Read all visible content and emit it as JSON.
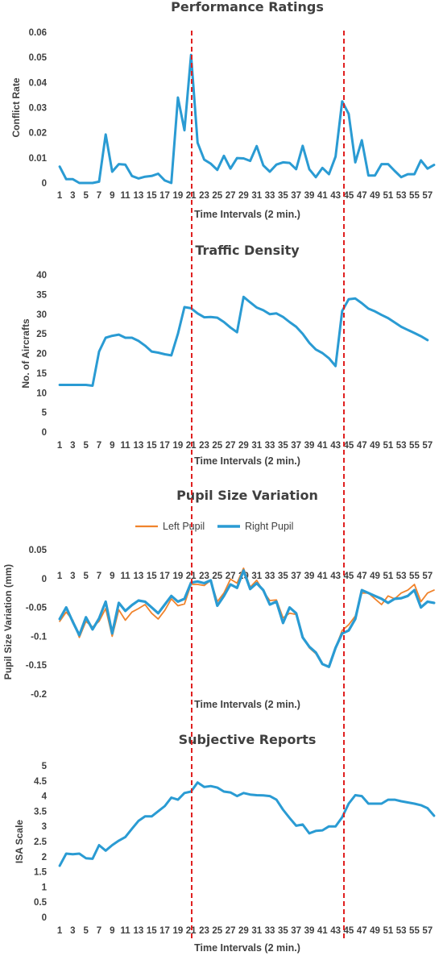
{
  "colors": {
    "series_primary": "#2a9bd3",
    "series_left": "#f0832c",
    "marker_line": "#e02020",
    "text": "#404040"
  },
  "chart_data": [
    {
      "type": "line",
      "title": "Performance Ratings",
      "xlabel": "Time Intervals (2 min.)",
      "ylabel": "Conflict Rate",
      "ylim": [
        0,
        0.06
      ],
      "yticks": [
        "0",
        "0.01",
        "0.02",
        "0.03",
        "0.04",
        "0.05",
        "0.06"
      ],
      "xticks": [
        "1",
        "3",
        "5",
        "7",
        "9",
        "11",
        "13",
        "15",
        "17",
        "19",
        "21",
        "23",
        "25",
        "27",
        "29",
        "31",
        "33",
        "35",
        "37",
        "39",
        "41",
        "43",
        "45",
        "47",
        "49",
        "51",
        "53",
        "55",
        "57"
      ],
      "x": [
        1,
        2,
        3,
        4,
        5,
        6,
        7,
        8,
        9,
        10,
        11,
        12,
        13,
        14,
        15,
        16,
        17,
        18,
        19,
        20,
        21,
        22,
        23,
        24,
        25,
        26,
        27,
        28,
        29,
        30,
        31,
        32,
        33,
        34,
        35,
        36,
        37,
        38,
        39,
        40,
        41,
        42,
        43,
        44,
        45,
        46,
        47,
        48,
        49,
        50,
        51,
        52,
        53,
        54,
        55,
        56,
        57,
        58
      ],
      "series": [
        {
          "values": [
            0.0065,
            0.0015,
            0.0015,
            0,
            0,
            0,
            0.0005,
            0.0193,
            0.0045,
            0.0075,
            0.0073,
            0.0028,
            0.0018,
            0.0025,
            0.0028,
            0.0037,
            0.001,
            0,
            0.034,
            0.021,
            0.051,
            0.016,
            0.0093,
            0.0077,
            0.0052,
            0.0108,
            0.0057,
            0.0099,
            0.0098,
            0.0088,
            0.0147,
            0.007,
            0.0045,
            0.0073,
            0.0082,
            0.008,
            0.0055,
            0.0148,
            0.0055,
            0.0023,
            0.006,
            0.0035,
            0.0105,
            0.0325,
            0.0275,
            0.0082,
            0.017,
            0.003,
            0.003,
            0.0075,
            0.0075,
            0.0048,
            0.0023,
            0.0035,
            0.0035,
            0.009,
            0.0057,
            0.0072
          ]
        }
      ]
    },
    {
      "type": "line",
      "title": "Traffic Density",
      "xlabel": "Time Intervals (2 min.)",
      "ylabel": "No. of Aircrafts",
      "ylim": [
        0,
        40
      ],
      "yticks": [
        "0",
        "5",
        "10",
        "15",
        "20",
        "25",
        "30",
        "35",
        "40"
      ],
      "xticks": [
        "1",
        "3",
        "5",
        "7",
        "9",
        "11",
        "13",
        "15",
        "17",
        "19",
        "21",
        "23",
        "25",
        "27",
        "29",
        "31",
        "33",
        "35",
        "37",
        "39",
        "41",
        "43",
        "45",
        "47",
        "49",
        "51",
        "53",
        "55",
        "57"
      ],
      "x": [
        1,
        2,
        3,
        4,
        5,
        6,
        7,
        8,
        9,
        10,
        11,
        12,
        13,
        14,
        15,
        16,
        17,
        18,
        19,
        20,
        21,
        22,
        23,
        24,
        25,
        26,
        27,
        28,
        29,
        30,
        31,
        32,
        33,
        34,
        35,
        36,
        37,
        38,
        39,
        40,
        41,
        42,
        43,
        44,
        45,
        46,
        47,
        48,
        49,
        50,
        51,
        52,
        53,
        54,
        55,
        56,
        57
      ],
      "series": [
        {
          "values": [
            12,
            12,
            12,
            12,
            12,
            11.8,
            20.5,
            24,
            24.5,
            24.8,
            24,
            24,
            23.2,
            22,
            20.5,
            20.2,
            19.8,
            19.5,
            25,
            31.8,
            31.5,
            30.2,
            29.2,
            29.3,
            29.1,
            28,
            26.6,
            25.4,
            34.4,
            33,
            31.7,
            31,
            30,
            30.2,
            29.3,
            28,
            26.8,
            25,
            22.7,
            21,
            20.1,
            18.8,
            16.8,
            30.8,
            33.8,
            34,
            32.8,
            31.4,
            30.7,
            29.8,
            29,
            27.9,
            26.8,
            26,
            25.2,
            24.4,
            23.4
          ]
        }
      ]
    },
    {
      "type": "line",
      "title": "Pupil Size Variation",
      "xlabel": "Time Intervals (2 min.)",
      "ylabel": "Pupil Size Variation (mm)",
      "ylim": [
        -0.2,
        0.05
      ],
      "yticks": [
        "-0.2",
        "-0.15",
        "-0.1",
        "-0.05",
        "0",
        "0.05"
      ],
      "xticks": [
        "1",
        "3",
        "5",
        "7",
        "9",
        "11",
        "13",
        "15",
        "17",
        "19",
        "21",
        "23",
        "25",
        "27",
        "29",
        "31",
        "33",
        "35",
        "37",
        "39",
        "41",
        "43",
        "45",
        "47",
        "49",
        "51",
        "53",
        "55",
        "57"
      ],
      "legend": "top",
      "x": [
        1,
        2,
        3,
        4,
        5,
        6,
        7,
        8,
        9,
        10,
        11,
        12,
        13,
        14,
        15,
        16,
        17,
        18,
        19,
        20,
        21,
        22,
        23,
        24,
        25,
        26,
        27,
        28,
        29,
        30,
        31,
        32,
        33,
        34,
        35,
        36,
        37,
        38,
        39,
        40,
        41,
        42,
        43,
        44,
        45,
        46,
        47,
        48,
        49,
        50,
        51,
        52,
        53,
        54,
        55,
        56,
        57,
        58
      ],
      "series": [
        {
          "name": "Left Pupil",
          "values": [
            -0.074,
            -0.058,
            -0.072,
            -0.102,
            -0.074,
            -0.084,
            -0.074,
            -0.052,
            -0.1,
            -0.054,
            -0.072,
            -0.058,
            -0.052,
            -0.045,
            -0.06,
            -0.07,
            -0.055,
            -0.035,
            -0.047,
            -0.044,
            -0.01,
            -0.01,
            -0.012,
            -0.003,
            -0.04,
            -0.025,
            -0.001,
            -0.008,
            0.018,
            -0.015,
            -0.003,
            -0.022,
            -0.038,
            -0.037,
            -0.068,
            -0.06,
            -0.062,
            -0.1,
            -0.12,
            -0.13,
            -0.148,
            -0.152,
            -0.12,
            -0.09,
            -0.08,
            -0.065,
            -0.025,
            -0.025,
            -0.035,
            -0.045,
            -0.03,
            -0.035,
            -0.025,
            -0.02,
            -0.01,
            -0.04,
            -0.025,
            -0.02
          ]
        },
        {
          "name": "Right Pupil",
          "values": [
            -0.07,
            -0.05,
            -0.075,
            -0.098,
            -0.067,
            -0.088,
            -0.069,
            -0.04,
            -0.095,
            -0.042,
            -0.056,
            -0.046,
            -0.038,
            -0.04,
            -0.05,
            -0.06,
            -0.045,
            -0.03,
            -0.04,
            -0.035,
            -0.007,
            -0.005,
            -0.008,
            -0.003,
            -0.047,
            -0.03,
            -0.01,
            -0.016,
            0.014,
            -0.018,
            -0.008,
            -0.02,
            -0.045,
            -0.04,
            -0.077,
            -0.05,
            -0.06,
            -0.102,
            -0.118,
            -0.128,
            -0.148,
            -0.153,
            -0.12,
            -0.095,
            -0.09,
            -0.07,
            -0.02,
            -0.025,
            -0.03,
            -0.035,
            -0.042,
            -0.035,
            -0.034,
            -0.03,
            -0.02,
            -0.05,
            -0.04,
            -0.042
          ]
        }
      ]
    },
    {
      "type": "line",
      "title": "Subjective Reports",
      "xlabel": "Time Intervals (2 min.)",
      "ylabel": "ISA Scale",
      "ylim": [
        0,
        5
      ],
      "yticks": [
        "0",
        "0.5",
        "1",
        "1.5",
        "2",
        "2.5",
        "3",
        "3.5",
        "4",
        "4.5",
        "5"
      ],
      "xticks": [
        "1",
        "3",
        "5",
        "7",
        "9",
        "11",
        "13",
        "15",
        "17",
        "19",
        "21",
        "23",
        "25",
        "27",
        "29",
        "31",
        "33",
        "35",
        "37",
        "39",
        "41",
        "43",
        "45",
        "47",
        "49",
        "51",
        "53",
        "55",
        "57"
      ],
      "x": [
        1,
        2,
        3,
        4,
        5,
        6,
        7,
        8,
        9,
        10,
        11,
        12,
        13,
        14,
        15,
        16,
        17,
        18,
        19,
        20,
        21,
        22,
        23,
        24,
        25,
        26,
        27,
        28,
        29,
        30,
        31,
        32,
        33,
        34,
        35,
        36,
        37,
        38,
        39,
        40,
        41,
        42,
        43,
        44,
        45,
        46,
        47,
        48,
        49,
        50,
        51,
        52,
        53,
        54,
        55,
        56,
        57,
        58
      ],
      "series": [
        {
          "values": [
            1.7,
            2.1,
            2.08,
            2.1,
            1.95,
            1.93,
            2.38,
            2.2,
            2.38,
            2.53,
            2.65,
            2.92,
            3.18,
            3.33,
            3.33,
            3.5,
            3.67,
            3.95,
            3.88,
            4.1,
            4.15,
            4.45,
            4.3,
            4.33,
            4.28,
            4.15,
            4.12,
            4,
            4.1,
            4.05,
            4.03,
            4.02,
            4,
            3.88,
            3.55,
            3.28,
            3.02,
            3.06,
            2.77,
            2.85,
            2.87,
            3,
            3,
            3.3,
            3.75,
            4.03,
            4,
            3.75,
            3.75,
            3.75,
            3.88,
            3.88,
            3.83,
            3.79,
            3.75,
            3.7,
            3.6,
            3.35
          ]
        }
      ]
    }
  ]
}
